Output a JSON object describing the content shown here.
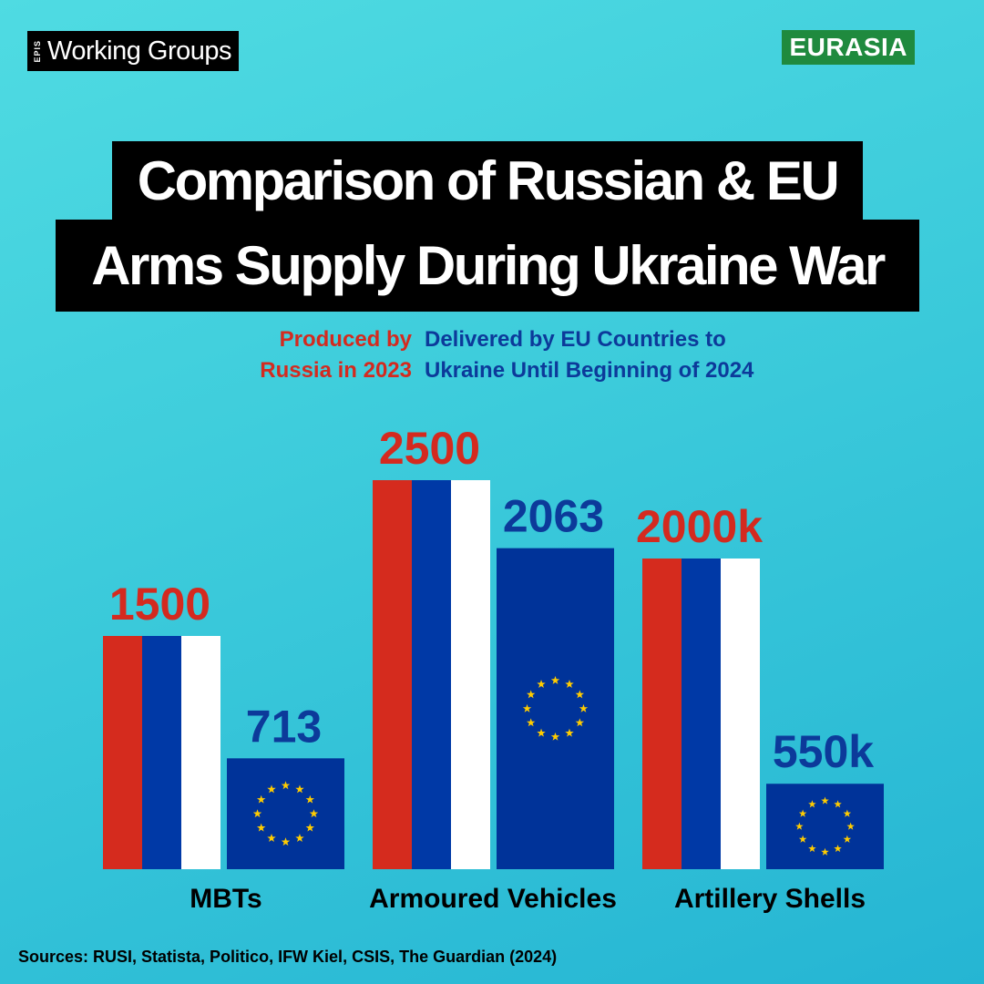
{
  "brand": {
    "tiny": "EPIS",
    "main": "Working Groups"
  },
  "region_badge": "EURASIA",
  "title": {
    "line1": "Comparison of Russian & EU",
    "line2": "Arms Supply During Ukraine War"
  },
  "legend": {
    "russia_line1": "Produced by",
    "russia_line2": "Russia in 2023",
    "eu_line1": "Delivered by EU Countries  to",
    "eu_line2": "Ukraine Until Beginning of 2024"
  },
  "colors": {
    "russia_label": "#d42a1f",
    "eu_label": "#0c3a9a",
    "flag_red": "#d52b1e",
    "flag_blue": "#0039a6",
    "flag_white": "#ffffff",
    "eu_blue": "#003399",
    "eu_star": "#ffcc00"
  },
  "chart_data": {
    "type": "bar",
    "categories": [
      "MBTs",
      "Armoured Vehicles",
      "Artillery Shells"
    ],
    "series": [
      {
        "name": "Produced by Russia in 2023",
        "style": "russian-flag",
        "values": [
          1500,
          2500,
          2000000
        ],
        "labels": [
          "1500",
          "2500",
          "2000k"
        ]
      },
      {
        "name": "Delivered by EU Countries to Ukraine Until Beginning of 2024",
        "style": "eu-flag",
        "values": [
          713,
          2063,
          550000
        ],
        "labels": [
          "713",
          "2063",
          "550k"
        ]
      }
    ],
    "note": "each category group uses its own value scale"
  },
  "source": "Sources: RUSI, Statista, Politico, IFW Kiel, CSIS, The Guardian (2024)"
}
